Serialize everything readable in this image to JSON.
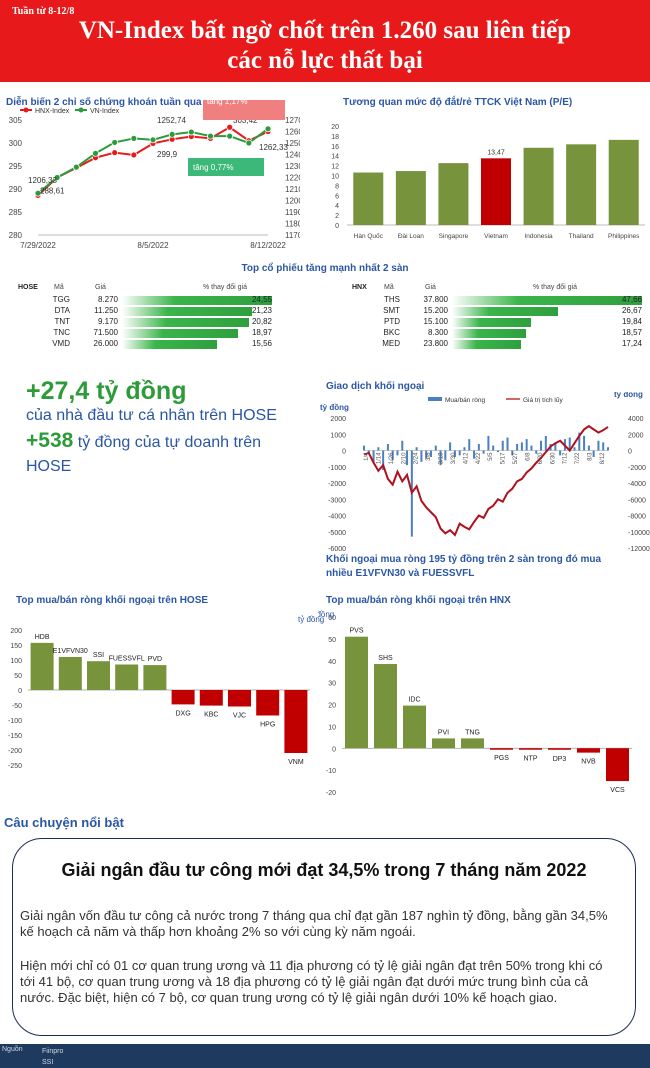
{
  "header": {
    "week": "Tuần từ 8-12/8",
    "title_line1": "VN-Index bất ngờ chốt trên 1.260 sau liên tiếp",
    "title_line2": "các nỗ lực thất bại"
  },
  "colors": {
    "red": "#e8191a",
    "green": "#2d9b3a",
    "blue": "#2a56a5",
    "olive": "#77933c",
    "darkred": "#c00000",
    "navy": "#1f3a5f"
  },
  "chart_data": [
    {
      "id": "index-line",
      "type": "line",
      "title": "Diễn biến 2 chỉ số chứng khoán tuần qua",
      "legend": [
        "HNX-Index",
        "VN-Index"
      ],
      "x_ticks": [
        "7/29/2022",
        "8/5/2022",
        "8/12/2022"
      ],
      "left_ticks": [
        "305",
        "300",
        "295",
        "290",
        "285",
        "280"
      ],
      "right_ticks": [
        "1270",
        "1260",
        "1250",
        "1240",
        "1230",
        "1220",
        "1210",
        "1200",
        "1190",
        "1180",
        "1170"
      ],
      "ylim_left": [
        280,
        305
      ],
      "ylim_right": [
        1170,
        1270
      ],
      "series": [
        {
          "name": "HNX-Index",
          "color": "#e8191a",
          "values": [
            288.61,
            292.5,
            294.6,
            296.8,
            297.9,
            297.4,
            299.9,
            300.8,
            301.4,
            301.0,
            303.42,
            300.5,
            302.5
          ]
        },
        {
          "name": "VN-Index",
          "color": "#2d9b3a",
          "values": [
            1206.33,
            1220,
            1229,
            1241,
            1250.5,
            1254,
            1252.74,
            1257.5,
            1259.5,
            1256,
            1256,
            1250,
            1262.33
          ]
        }
      ],
      "labels": {
        "hnx_start": "288,61",
        "vn_start": "1206,33",
        "vn_mid": "1252,74",
        "hnx_mid": "299,9",
        "hnx_end": "303,42",
        "vn_end": "1262,33"
      },
      "callouts": {
        "red": "tăng 1,17%",
        "green": "tăng 0,77%"
      }
    },
    {
      "id": "pe-bar",
      "type": "bar",
      "title": "Tương quan mức độ đắt/rẻ TTCK Việt Nam (P/E)",
      "categories": [
        "Hàn Quốc",
        "Đài Loan",
        "Singapore",
        "Vietnam",
        "Indonesia",
        "Thailand",
        "Philippines"
      ],
      "values": [
        10.6,
        10.9,
        12.5,
        13.47,
        15.6,
        16.3,
        17.2
      ],
      "highlight_index": 3,
      "highlight_label": "13,47",
      "ylim": [
        0,
        20
      ],
      "y_ticks": [
        "20",
        "18",
        "16",
        "14",
        "12",
        "10",
        "8",
        "6",
        "4",
        "2",
        "0"
      ]
    },
    {
      "id": "foreign-trade",
      "type": "line",
      "title": "Giao dịch khối ngoại",
      "legend": [
        "Mua/bán ròng",
        "Giá trị tích lũy"
      ],
      "unit_left": "tỷ đồng",
      "unit_right": "tỷ đồng",
      "left_ticks": [
        "2000",
        "1000",
        "0",
        "-1000",
        "-2000",
        "-3000",
        "-4000",
        "-5000",
        "-6000"
      ],
      "right_ticks": [
        "4000",
        "2000",
        "0",
        "-2000",
        "-4000",
        "-6000",
        "-8000",
        "-10000",
        "-12000"
      ],
      "ylim_left": [
        -6000,
        2000
      ],
      "ylim_right": [
        -12000,
        4000
      ],
      "date_ticks": [
        "1/4",
        "1/14",
        "1/26",
        "2/10",
        "2/24",
        "3/8",
        "3/18",
        "3/30",
        "4/12",
        "4/22",
        "5/5",
        "5/17",
        "5/27",
        "6/8",
        "6/20",
        "6/30",
        "7/12",
        "7/22",
        "8/3",
        "8/12"
      ],
      "cumulative": [
        -500,
        -300,
        -1500,
        -2500,
        -1800,
        -3500,
        -4200,
        -2600,
        -3800,
        -3000,
        -5200,
        -4400,
        -6200,
        -7000,
        -7600,
        -8200,
        -9600,
        -10200,
        -9800,
        -10400,
        -9000,
        -9400,
        -9700,
        -8800,
        -8000,
        -8300,
        -7200,
        -6800,
        -6000,
        -6300,
        -5200,
        -4700,
        -3800,
        -3500,
        -2700,
        -2200,
        -1500,
        -900,
        -200,
        500,
        900,
        1200,
        600,
        0,
        900,
        1800,
        2600,
        3000,
        2600,
        2200,
        2500,
        2900
      ],
      "net": [
        300,
        -200,
        -800,
        200,
        -1200,
        400,
        -600,
        -300,
        600,
        -900,
        -5300,
        200,
        -700,
        -500,
        -400,
        300,
        -900,
        -600,
        500,
        -400,
        -300,
        200,
        700,
        -500,
        400,
        -200,
        900,
        300,
        -100,
        600,
        800,
        -300,
        400,
        500,
        700,
        300,
        -200,
        600,
        900,
        400,
        500,
        -300,
        700,
        800,
        200,
        1100,
        900,
        300,
        -400,
        600,
        500,
        200
      ],
      "caption": "Khối ngoại mua ròng 195 tỷ đồng trên 2 sàn trong đó mua nhiều E1VFVN30 và FUESSVFL"
    },
    {
      "id": "hose-foreign",
      "type": "bar",
      "title": "Top mua/bán ròng khối ngoại trên HOSE",
      "unit": "tỷ đồng",
      "categories": [
        "HDB",
        "E1VFVN30",
        "SSI",
        "FUESSVFL",
        "PVD",
        "DXG",
        "KBC",
        "VJC",
        "HPG",
        "VNM"
      ],
      "values": [
        157,
        110,
        96,
        85,
        83,
        -48,
        -52,
        -55,
        -85,
        -210
      ],
      "ylim": [
        -250,
        200
      ],
      "y_ticks": [
        "200",
        "150",
        "100",
        "50",
        "0",
        "-50",
        "-100",
        "-150",
        "-200",
        "-250"
      ]
    },
    {
      "id": "hnx-foreign",
      "type": "bar",
      "title": "Top mua/bán ròng khối ngoại trên HNX",
      "unit": "tỷ đồng",
      "categories": [
        "PVS",
        "SHS",
        "IDC",
        "PVI",
        "TNG",
        "PGS",
        "NTP",
        "DP3",
        "NVB",
        "VCS"
      ],
      "values": [
        51,
        38.5,
        19.5,
        4.5,
        4.5,
        -0.3,
        -0.5,
        -0.7,
        -2,
        -15
      ],
      "ylim": [
        -20,
        60
      ],
      "y_ticks": [
        "60",
        "50",
        "40",
        "30",
        "20",
        "10",
        "0",
        "-10",
        "-20"
      ]
    }
  ],
  "top_stocks": {
    "title": "Top cổ phiếu tăng mạnh nhất 2 sàn",
    "hose": {
      "exchange": "HOSE",
      "col_code": "Mã",
      "col_price": "Giá",
      "col_change": "% thay đổi giá",
      "rows": [
        {
          "code": "TGG",
          "price": "8.270",
          "change": 24.55,
          "change_label": "24,55"
        },
        {
          "code": "DTA",
          "price": "11.250",
          "change": 21.23,
          "change_label": "21,23"
        },
        {
          "code": "TNT",
          "price": "9.170",
          "change": 20.82,
          "change_label": "20,82"
        },
        {
          "code": "TNC",
          "price": "71.500",
          "change": 18.97,
          "change_label": "18,97"
        },
        {
          "code": "VMD",
          "price": "26.000",
          "change": 15.56,
          "change_label": "15,56"
        }
      ]
    },
    "hnx": {
      "exchange": "HNX",
      "col_code": "Mã",
      "col_price": "Giá",
      "col_change": "% thay đổi giá",
      "rows": [
        {
          "code": "THS",
          "price": "37.800",
          "change": 47.66,
          "change_label": "47,66"
        },
        {
          "code": "SMT",
          "price": "15.200",
          "change": 26.67,
          "change_label": "26,67"
        },
        {
          "code": "PTD",
          "price": "15.100",
          "change": 19.84,
          "change_label": "19,84"
        },
        {
          "code": "BKC",
          "price": "8.300",
          "change": 18.57,
          "change_label": "18,57"
        },
        {
          "code": "MED",
          "price": "23.800",
          "change": 17.24,
          "change_label": "17,24"
        }
      ]
    }
  },
  "highlights": {
    "retail_amount": "+27,4 tỷ đồng",
    "retail_desc": "của nhà đầu tư cá nhân trên HOSE",
    "prop_amount": "+538",
    "prop_desc_1": " tỷ đồng của tự doanh trên",
    "prop_desc_2": "HOSE"
  },
  "story": {
    "heading": "Câu chuyện nổi bật",
    "title": "Giải ngân đầu tư công mới đạt 34,5% trong 7 tháng năm 2022",
    "para1": "Giải ngân vốn đầu tư công cả nước trong 7 tháng qua chỉ đạt gần 187 nghìn tỷ đồng, bằng gần 34,5% kế hoạch cả năm và thấp hơn khoảng 2% so với cùng kỳ năm ngoái.",
    "para2": "Hiện mới chỉ có 01 cơ quan trung ương và 11 địa phương có tỷ lệ giải ngân đạt trên 50% trong khi có tới 41 bộ, cơ quan trung ương và 18 địa phương có tỷ lệ giải ngân đạt dưới mức trung bình của cả nước. Đặc biệt, hiện có 7 bộ, cơ quan trung ương có tỷ lệ giải ngân dưới 10% kế hoạch giao."
  },
  "footer": {
    "source_label": "Nguồn",
    "source_1": "Fiinpro",
    "source_2": "SSI"
  }
}
